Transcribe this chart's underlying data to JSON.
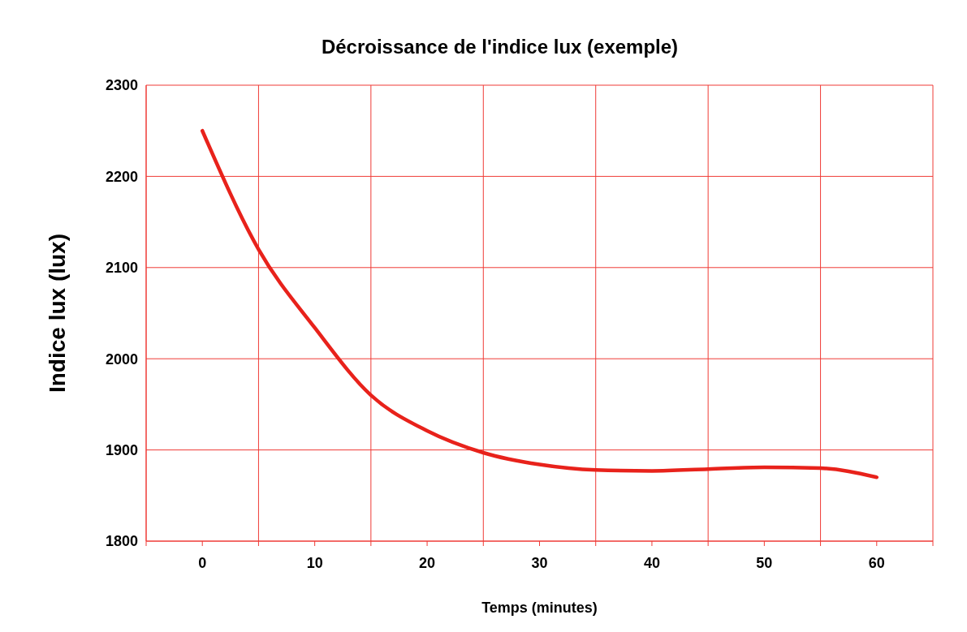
{
  "chart_data": {
    "type": "line",
    "title": "Décroissance de l'indice lux (exemple)",
    "xlabel": "Temps (minutes)",
    "ylabel": "Indice lux (lux)",
    "x": [
      0,
      5,
      10,
      15,
      20,
      25,
      30,
      35,
      40,
      45,
      50,
      55,
      60
    ],
    "series": [
      {
        "color": "#e8221b",
        "values": [
          2250,
          2120,
          2034,
          1960,
          1921,
          1897,
          1884,
          1878,
          1877,
          1879,
          1881,
          1880,
          1870
        ]
      }
    ],
    "xlim": [
      -5,
      65
    ],
    "xticks": [
      {
        "value": -5,
        "label": null
      },
      0,
      {
        "value": 5,
        "label": null
      },
      10,
      {
        "value": 15,
        "label": null
      },
      20,
      {
        "value": 25,
        "label": null
      },
      30,
      {
        "value": 35,
        "label": null
      },
      40,
      {
        "value": 45,
        "label": null
      },
      50,
      {
        "value": 55,
        "label": null
      },
      60,
      {
        "value": 65,
        "label": null
      }
    ],
    "ylim": [
      1800,
      2300
    ],
    "yticks": [
      1800,
      1900,
      2000,
      2100,
      2200,
      2300
    ],
    "grid": true,
    "marker": "none",
    "line_style": "solid"
  }
}
